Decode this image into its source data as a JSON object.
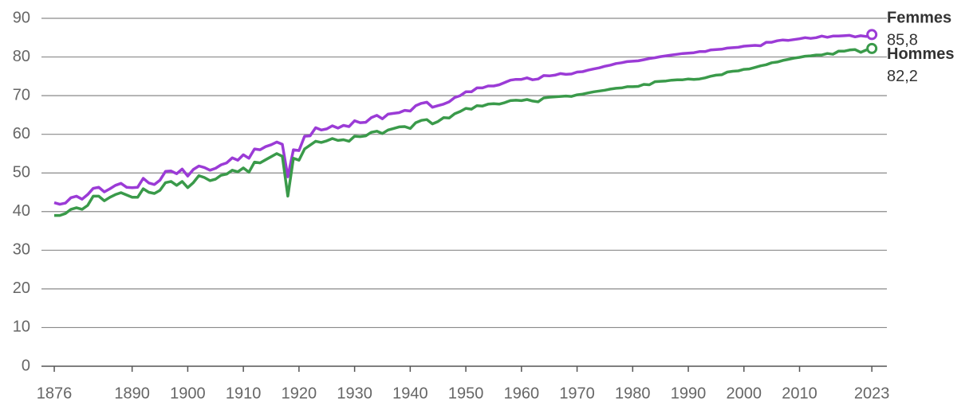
{
  "chart_data": {
    "type": "line",
    "x": [
      1876,
      1877,
      1878,
      1879,
      1880,
      1881,
      1882,
      1883,
      1884,
      1885,
      1886,
      1887,
      1888,
      1889,
      1890,
      1891,
      1892,
      1893,
      1894,
      1895,
      1896,
      1897,
      1898,
      1899,
      1900,
      1901,
      1902,
      1903,
      1904,
      1905,
      1906,
      1907,
      1908,
      1909,
      1910,
      1911,
      1912,
      1913,
      1914,
      1915,
      1916,
      1917,
      1918,
      1919,
      1920,
      1921,
      1922,
      1923,
      1924,
      1925,
      1926,
      1927,
      1928,
      1929,
      1930,
      1931,
      1932,
      1933,
      1934,
      1935,
      1936,
      1937,
      1938,
      1939,
      1940,
      1941,
      1942,
      1943,
      1944,
      1945,
      1946,
      1947,
      1948,
      1949,
      1950,
      1951,
      1952,
      1953,
      1954,
      1955,
      1956,
      1957,
      1958,
      1959,
      1960,
      1961,
      1962,
      1963,
      1964,
      1965,
      1966,
      1967,
      1968,
      1969,
      1970,
      1971,
      1972,
      1973,
      1974,
      1975,
      1976,
      1977,
      1978,
      1979,
      1980,
      1981,
      1982,
      1983,
      1984,
      1985,
      1986,
      1987,
      1988,
      1989,
      1990,
      1991,
      1992,
      1993,
      1994,
      1995,
      1996,
      1997,
      1998,
      1999,
      2000,
      2001,
      2002,
      2003,
      2004,
      2005,
      2006,
      2007,
      2008,
      2009,
      2010,
      2011,
      2012,
      2013,
      2014,
      2015,
      2016,
      2017,
      2018,
      2019,
      2020,
      2021,
      2022,
      2023
    ],
    "series": [
      {
        "name": "Femmes",
        "color": "#9b3bd6",
        "value_labels": {
          "147": "85,8"
        },
        "values": [
          42.3,
          41.9,
          42.2,
          43.6,
          44.0,
          43.2,
          44.4,
          46.0,
          46.3,
          45.1,
          45.9,
          46.8,
          47.3,
          46.3,
          46.2,
          46.3,
          48.6,
          47.4,
          47.0,
          48.1,
          50.4,
          50.5,
          49.8,
          51.0,
          49.2,
          50.9,
          51.8,
          51.4,
          50.7,
          51.2,
          52.1,
          52.6,
          53.9,
          53.3,
          54.7,
          53.8,
          56.2,
          56.0,
          56.8,
          57.3,
          58.0,
          57.4,
          49.0,
          56.0,
          55.8,
          59.5,
          59.6,
          61.7,
          61.1,
          61.4,
          62.2,
          61.6,
          62.3,
          62.0,
          63.5,
          63.0,
          63.1,
          64.3,
          64.9,
          64.0,
          65.2,
          65.4,
          65.6,
          66.2,
          66.0,
          67.4,
          68.0,
          68.3,
          67.0,
          67.4,
          67.8,
          68.4,
          69.5,
          70.0,
          71.0,
          71.0,
          72.0,
          72.0,
          72.5,
          72.5,
          72.8,
          73.4,
          74.0,
          74.2,
          74.2,
          74.6,
          74.1,
          74.3,
          75.2,
          75.1,
          75.3,
          75.7,
          75.5,
          75.6,
          76.1,
          76.2,
          76.6,
          76.9,
          77.2,
          77.6,
          77.9,
          78.3,
          78.5,
          78.8,
          78.9,
          79.0,
          79.3,
          79.6,
          79.8,
          80.1,
          80.3,
          80.5,
          80.7,
          80.9,
          81.0,
          81.1,
          81.4,
          81.4,
          81.8,
          81.9,
          82.0,
          82.3,
          82.4,
          82.5,
          82.8,
          82.9,
          83.0,
          82.9,
          83.8,
          83.8,
          84.2,
          84.4,
          84.3,
          84.5,
          84.7,
          85.0,
          84.8,
          85.0,
          85.4,
          85.1,
          85.4,
          85.4,
          85.5,
          85.6,
          85.2,
          85.5,
          85.3,
          85.8
        ]
      },
      {
        "name": "Hommes",
        "color": "#3a9a4a",
        "value_labels": {
          "147": "82,2"
        },
        "values": [
          39.0,
          39.0,
          39.5,
          40.6,
          41.0,
          40.6,
          41.6,
          44.0,
          44.0,
          42.8,
          43.7,
          44.4,
          44.9,
          44.3,
          43.7,
          43.7,
          45.9,
          45.0,
          44.7,
          45.5,
          47.5,
          47.8,
          46.8,
          47.8,
          46.2,
          47.5,
          49.3,
          48.8,
          48.0,
          48.4,
          49.4,
          49.7,
          50.7,
          50.3,
          51.3,
          50.2,
          52.8,
          52.6,
          53.4,
          54.2,
          55.0,
          54.3,
          44.0,
          53.8,
          53.3,
          56.2,
          57.2,
          58.2,
          57.9,
          58.3,
          58.9,
          58.4,
          58.6,
          58.2,
          59.5,
          59.4,
          59.6,
          60.5,
          60.8,
          60.2,
          61.1,
          61.5,
          61.9,
          62.0,
          61.5,
          63.0,
          63.6,
          63.8,
          62.7,
          63.3,
          64.3,
          64.2,
          65.3,
          65.9,
          66.7,
          66.5,
          67.4,
          67.3,
          67.8,
          67.9,
          67.8,
          68.2,
          68.7,
          68.8,
          68.7,
          69.0,
          68.6,
          68.4,
          69.4,
          69.6,
          69.7,
          69.8,
          69.9,
          69.8,
          70.2,
          70.4,
          70.7,
          71.0,
          71.2,
          71.4,
          71.7,
          71.9,
          72.0,
          72.3,
          72.3,
          72.4,
          72.9,
          72.8,
          73.6,
          73.7,
          73.8,
          74.0,
          74.1,
          74.1,
          74.3,
          74.2,
          74.3,
          74.6,
          75.0,
          75.3,
          75.4,
          76.1,
          76.3,
          76.4,
          76.8,
          76.9,
          77.3,
          77.7,
          78.0,
          78.5,
          78.7,
          79.1,
          79.4,
          79.7,
          79.9,
          80.2,
          80.3,
          80.5,
          80.5,
          80.9,
          80.7,
          81.5,
          81.5,
          81.8,
          81.9,
          81.2,
          81.8,
          82.2
        ]
      }
    ],
    "xlim": [
      1873.7,
      2025.7
    ],
    "xticks": [
      1876,
      1890,
      1900,
      1910,
      1920,
      1930,
      1940,
      1950,
      1960,
      1970,
      1980,
      1990,
      2000,
      2010,
      2023
    ],
    "ylim": [
      0,
      90
    ],
    "yticks": [
      0,
      10,
      20,
      30,
      40,
      50,
      60,
      70,
      80,
      90
    ],
    "grid": true
  }
}
